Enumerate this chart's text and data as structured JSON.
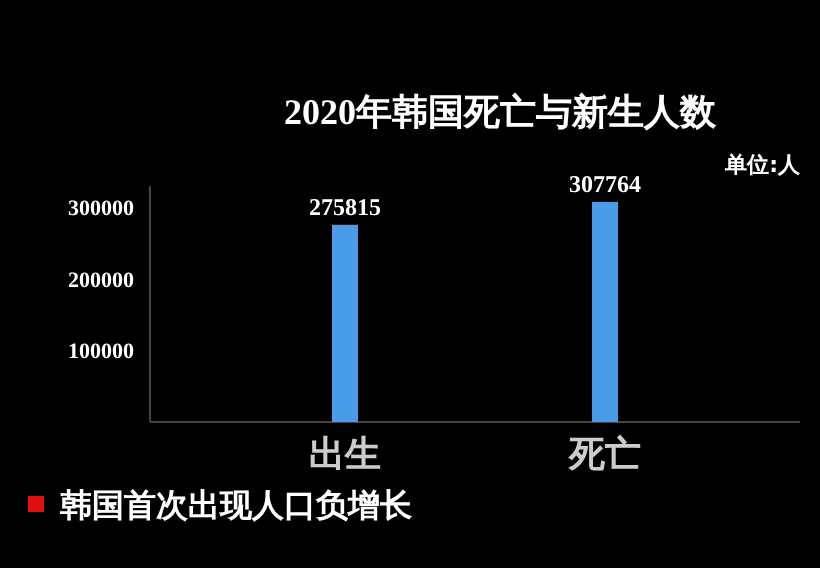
{
  "chart_data": {
    "type": "bar",
    "title": "2020年韩国死亡与新生人数",
    "categories": [
      "出生",
      "死亡"
    ],
    "values": [
      275815,
      307764
    ],
    "color": "#4a9be8",
    "data_labels": true,
    "ylim": [
      0,
      330000
    ],
    "yticks": [
      100000,
      200000,
      300000
    ],
    "annotations": [
      "单位:人",
      "韩国首次出现人口负增长"
    ]
  }
}
